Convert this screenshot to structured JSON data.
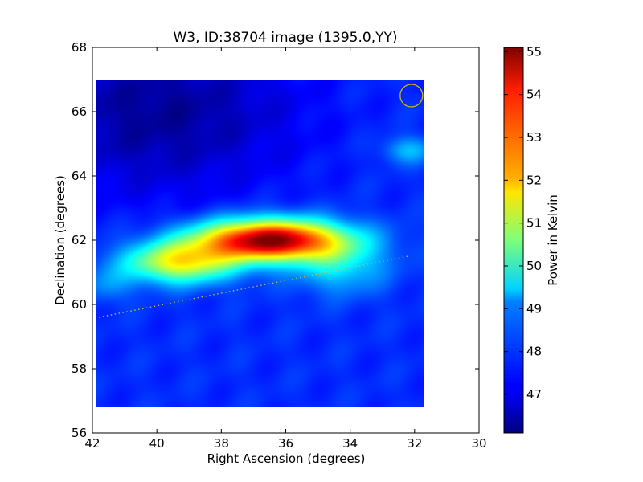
{
  "chart_data": {
    "type": "heatmap",
    "title": "W3, ID:38704 image (1395.0,YY)",
    "xlabel": "Right Ascension (degrees)",
    "ylabel": "Declination (degrees)",
    "xlim": [
      42,
      30
    ],
    "ylim": [
      56,
      68
    ],
    "xticks": [
      "42",
      "40",
      "38",
      "36",
      "34",
      "32",
      "30"
    ],
    "yticks": [
      "56",
      "58",
      "60",
      "62",
      "64",
      "66",
      "68"
    ],
    "image_extent": {
      "ra": [
        41.9,
        31.7
      ],
      "dec": [
        56.8,
        67.0
      ]
    },
    "colorbar": {
      "label": "Power in Kelvin",
      "range": [
        46.1,
        55.1
      ],
      "ticks": [
        "47",
        "48",
        "49",
        "50",
        "51",
        "52",
        "53",
        "54",
        "55"
      ],
      "colormap": "jet"
    },
    "background_level": 47.6,
    "sources": [
      {
        "ra": 36.5,
        "dec": 62.0,
        "peak": 55.1,
        "sigma_ra": 1.6,
        "sigma_dec": 0.45,
        "note": "main emission peak"
      },
      {
        "ra": 39.3,
        "dec": 61.3,
        "peak": 51.6,
        "sigma_ra": 1.2,
        "sigma_dec": 0.45
      },
      {
        "ra": 34.3,
        "dec": 61.2,
        "peak": 49.2,
        "sigma_ra": 1.0,
        "sigma_dec": 0.6
      },
      {
        "ra": 32.2,
        "dec": 64.8,
        "peak": 48.9,
        "sigma_ra": 0.55,
        "sigma_dec": 0.3
      },
      {
        "ra": 41.5,
        "dec": 60.6,
        "peak": 48.4,
        "sigma_ra": 0.5,
        "sigma_dec": 0.4
      }
    ],
    "dark_region": {
      "ra": 40.0,
      "dec": 66.0,
      "level": 46.3,
      "sigma_ra": 3.0,
      "sigma_dec": 1.8
    },
    "beam_circle": {
      "ra": 32.1,
      "dec": 66.5,
      "radius_deg": 0.35,
      "color": "#c8b428"
    },
    "dotted_line": {
      "color": "#bfbf40",
      "points": [
        [
          41.8,
          59.6
        ],
        [
          32.2,
          61.5
        ]
      ]
    }
  }
}
